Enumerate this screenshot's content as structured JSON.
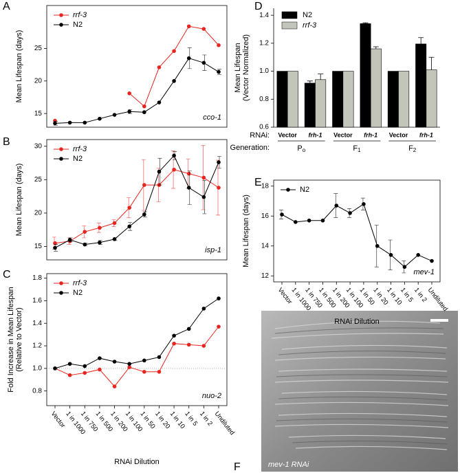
{
  "chart_data": [
    {
      "panel": "A",
      "type": "line",
      "ylabel": "Mean Lifespan (days)",
      "annotation": "cco-1",
      "ylim": [
        12.9,
        31.6
      ],
      "yticks": [
        15,
        20,
        25
      ],
      "series": [
        {
          "name": "rrf-3",
          "color": "#e8251f",
          "values": [
            13.9,
            null,
            null,
            null,
            null,
            18.1,
            16.1,
            22.1,
            24.6,
            28.4,
            28.0,
            25.5
          ]
        },
        {
          "name": "N2",
          "color": "#000000",
          "values": [
            13.5,
            13.6,
            13.6,
            14.2,
            14.8,
            15.3,
            15.2,
            16.7,
            20.0,
            23.5,
            22.8,
            21.4
          ],
          "errors": [
            0.3,
            0,
            0,
            0,
            0,
            0.3,
            0,
            0,
            0,
            1.6,
            1.2,
            0.4
          ]
        }
      ]
    },
    {
      "panel": "B",
      "type": "line",
      "ylabel": "Mean Lifespan (days)",
      "annotation": "isp-1",
      "ylim": [
        13,
        31
      ],
      "yticks": [
        15,
        20,
        25,
        30
      ],
      "series": [
        {
          "name": "rrf-3",
          "color": "#e8251f",
          "values": [
            15.5,
            15.8,
            17.2,
            17.8,
            18.5,
            20.8,
            24.2,
            24.2,
            26.5,
            25.9,
            25.3,
            23.8
          ],
          "errors": [
            0.9,
            0.5,
            0.9,
            0.7,
            0.5,
            1.5,
            3.8,
            2.5,
            2.8,
            2.2,
            4.8,
            4.1
          ]
        },
        {
          "name": "N2",
          "color": "#000000",
          "values": [
            14.8,
            16.0,
            15.3,
            15.6,
            16.1,
            18.0,
            19.8,
            26.2,
            28.6,
            23.8,
            22.4,
            27.6
          ],
          "errors": [
            0.5,
            0.3,
            0.2,
            0.3,
            0.2,
            0.6,
            0.4,
            2.0,
            0.6,
            2.5,
            2.5,
            0.9
          ]
        }
      ]
    },
    {
      "panel": "C",
      "type": "line",
      "ylabel": [
        "Fold Increase in Mean Lifespan",
        "(Relative to Vector)"
      ],
      "annotation": "nuo-2",
      "xlabel": "RNAi Dilution",
      "categories": [
        "Vector",
        "1 in 1000",
        "1 in 750",
        "1 in 500",
        "1 in 200",
        "1 in 100",
        "1 in 50",
        "1 in 20",
        "1 in 10",
        "1 in 5",
        "1 in 2",
        "Undiluted"
      ],
      "ylim": [
        0.67,
        1.84
      ],
      "reference_line": 1.0,
      "yticks": [
        {
          "value": 0.8,
          "label": "0.8"
        },
        {
          "value": 1.0,
          "label": "1.0"
        },
        {
          "value": 1.2,
          "label": "1.2"
        },
        {
          "value": 1.4,
          "label": "1.4"
        },
        {
          "value": 1.6,
          "label": "1.6"
        },
        {
          "value": 1.8,
          "label": "1.8"
        }
      ],
      "series": [
        {
          "name": "rrf-3",
          "color": "#e8251f",
          "values": [
            1.0,
            0.94,
            0.96,
            0.99,
            0.84,
            1.01,
            0.97,
            0.97,
            1.22,
            1.21,
            1.2,
            1.37
          ]
        },
        {
          "name": "N2",
          "color": "#000000",
          "values": [
            1.0,
            1.04,
            1.02,
            1.09,
            1.06,
            1.04,
            1.07,
            1.1,
            1.29,
            1.35,
            1.53,
            1.62
          ]
        }
      ]
    },
    {
      "panel": "D",
      "type": "bar",
      "ylabel": [
        "Mean Lifespan",
        "(Vector Normalized)"
      ],
      "row_label": "RNAi:",
      "categories": [
        "Vector",
        "frh-1",
        "Vector",
        "frh-1",
        "Vector",
        "frh-1"
      ],
      "generation_label": "Generation:",
      "generations": [
        "P",
        "F",
        "F"
      ],
      "generation_subscripts": [
        "o",
        "1",
        "2"
      ],
      "ylim": [
        0.6,
        1.45
      ],
      "yticks": [
        {
          "value": 0.6,
          "label": "0.6"
        },
        {
          "value": 0.8,
          "label": "0.8"
        },
        {
          "value": 1.0,
          "label": "1.0"
        },
        {
          "value": 1.2,
          "label": "1.2"
        },
        {
          "value": 1.4,
          "label": "1.4"
        }
      ],
      "series": [
        {
          "name": "N2",
          "color": "#000000",
          "values": [
            1.0,
            0.915,
            1.0,
            1.34,
            1.0,
            1.195
          ],
          "errors": [
            0,
            0.015,
            0,
            0.006,
            0,
            0.045
          ]
        },
        {
          "name": "rrf-3",
          "color": "#c2c5b9",
          "values": [
            1.0,
            0.94,
            1.0,
            1.16,
            1.0,
            1.01
          ],
          "errors": [
            0,
            0.04,
            0,
            0.015,
            0,
            0.09
          ]
        }
      ]
    },
    {
      "panel": "E",
      "type": "line",
      "ylabel": "Mean Lifespan (days)",
      "annotation": "mev-1",
      "xlabel": "RNAi Dilution",
      "categories": [
        "Vector",
        "1 in 1000",
        "1 in 750",
        "1 in 500",
        "1 in 200",
        "1 in 100",
        "1 in 50",
        "1 in 20",
        "1 in 10",
        "1 in 5",
        "1 in 2",
        "Undiluted"
      ],
      "ylim": [
        11.6,
        18.4
      ],
      "yticks": [
        12,
        14,
        16,
        18
      ],
      "series": [
        {
          "name": "N2",
          "color": "#000000",
          "values": [
            16.1,
            15.6,
            15.7,
            15.7,
            16.7,
            16.2,
            16.8,
            14.0,
            13.4,
            12.6,
            13.4,
            13.0
          ],
          "errors": [
            0.3,
            0,
            0,
            0,
            0.8,
            0.3,
            0.4,
            1.4,
            1.0,
            0.4,
            0,
            0
          ]
        }
      ]
    }
  ],
  "image_panel": {
    "panel": "F",
    "caption": "mev-1 RNAi"
  }
}
